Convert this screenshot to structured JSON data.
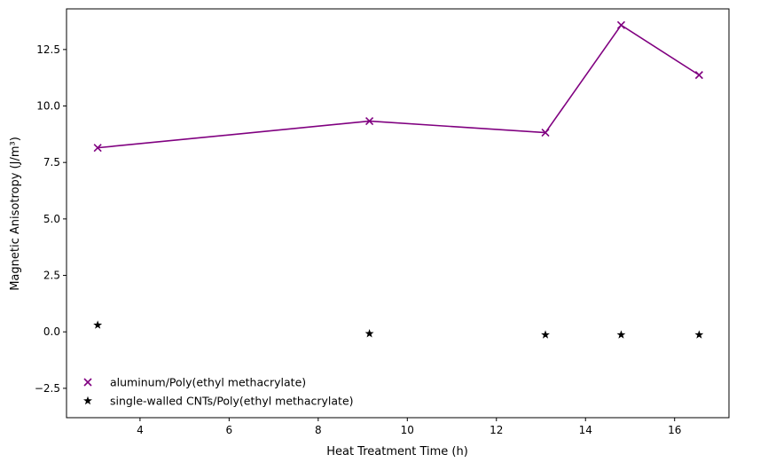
{
  "chart_data": {
    "type": "line",
    "title": "",
    "xlabel": "Heat Treatment Time (h)",
    "ylabel": "Magnetic Anisotropy (J/m³)",
    "xlim": [
      2.35,
      17.22
    ],
    "ylim": [
      -3.8,
      14.3
    ],
    "x_ticks": [
      4,
      6,
      8,
      10,
      12,
      14,
      16
    ],
    "y_ticks": [
      -2.5,
      0.0,
      2.5,
      5.0,
      7.5,
      10.0,
      12.5
    ],
    "x_tick_labels": [
      "4",
      "6",
      "8",
      "10",
      "12",
      "14",
      "16"
    ],
    "y_tick_labels": [
      "−2.5",
      "0.0",
      "2.5",
      "5.0",
      "7.5",
      "10.0",
      "12.5"
    ],
    "grid": false,
    "legend_position": "lower-left",
    "series": [
      {
        "name": "aluminum/Poly(ethyl methacrylate)",
        "color": "#800080",
        "marker": "x",
        "line": true,
        "x": [
          3.05,
          9.15,
          13.1,
          14.8,
          16.55
        ],
        "y": [
          8.15,
          9.33,
          8.82,
          13.58,
          11.37
        ]
      },
      {
        "name": "single-walled CNTs/Poly(ethyl methacrylate)",
        "color": "#000000",
        "marker": "star",
        "line": false,
        "x": [
          3.05,
          9.15,
          13.1,
          14.8,
          16.55
        ],
        "y": [
          0.3,
          -0.08,
          -0.13,
          -0.13,
          -0.13
        ]
      }
    ]
  }
}
